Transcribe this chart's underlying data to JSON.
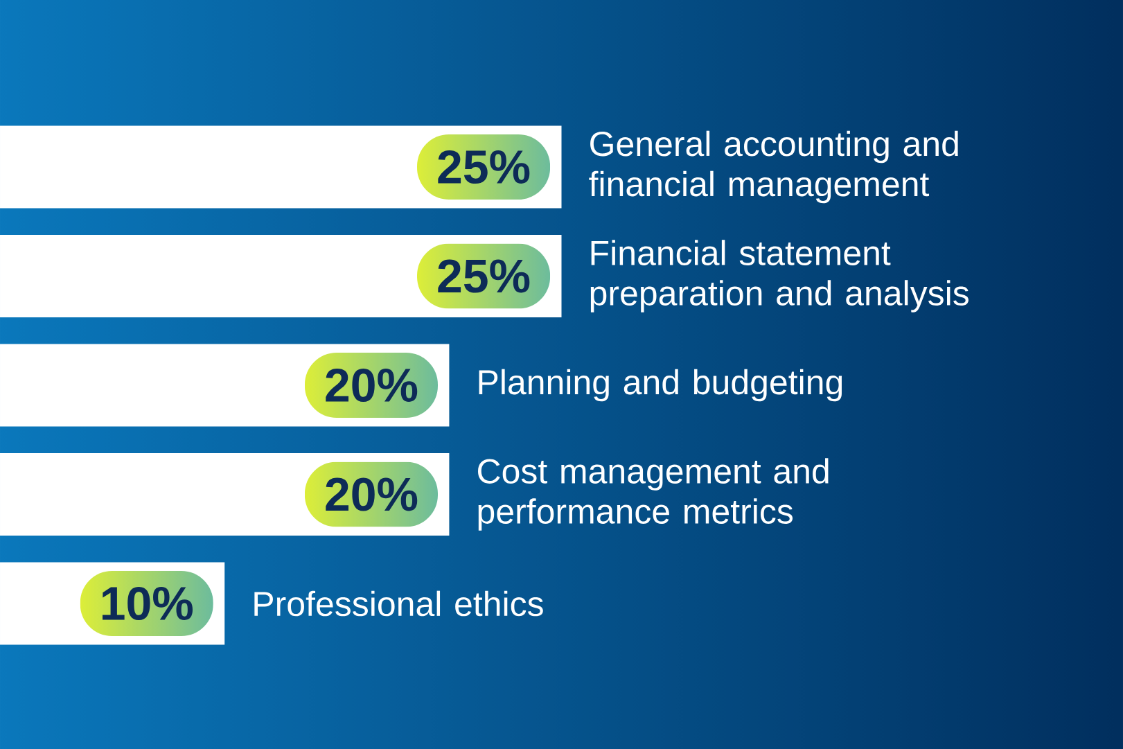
{
  "chart_data": {
    "type": "bar",
    "orientation": "horizontal",
    "categories": [
      "General accounting and financial management",
      "Financial statement preparation and analysis",
      "Planning and budgeting",
      "Cost management and performance metrics",
      "Professional ethics"
    ],
    "values": [
      25,
      25,
      20,
      20,
      10
    ],
    "value_labels": [
      "25%",
      "25%",
      "20%",
      "20%",
      "10%"
    ],
    "color": "#ffffff",
    "xlim": [
      0,
      50
    ],
    "tick_labels": false
  }
}
